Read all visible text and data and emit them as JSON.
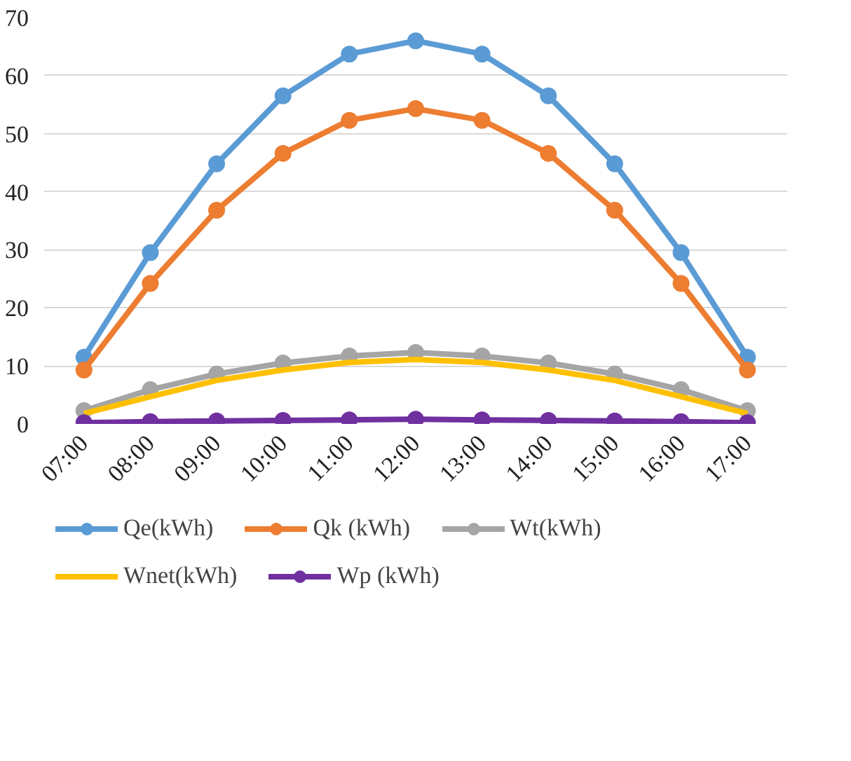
{
  "chart_data": {
    "type": "line",
    "categories": [
      "07:00",
      "08:00",
      "09:00",
      "10:00",
      "11:00",
      "12:00",
      "13:00",
      "14:00",
      "15:00",
      "16:00",
      "17:00"
    ],
    "series": [
      {
        "name": "Qe(kWh)",
        "color": "#5b9bd5",
        "marker": "circle",
        "values": [
          11.5,
          29.5,
          44.8,
          56.5,
          63.7,
          66,
          63.7,
          56.5,
          44.8,
          29.5,
          11.5
        ]
      },
      {
        "name": "Qk (kWh)",
        "color": "#ed7d31",
        "marker": "circle",
        "values": [
          9.3,
          24.2,
          36.8,
          46.6,
          52.3,
          54.3,
          52.3,
          46.6,
          36.8,
          24.2,
          9.3
        ]
      },
      {
        "name": "Wt(kWh)",
        "color": "#a5a5a5",
        "marker": "circle",
        "values": [
          2.3,
          5.9,
          8.6,
          10.5,
          11.7,
          12.3,
          11.7,
          10.5,
          8.6,
          5.9,
          2.3
        ]
      },
      {
        "name": "Wnet(kWh)",
        "color": "#ffc000",
        "marker": "none",
        "values": [
          1.8,
          4.7,
          7.5,
          9.3,
          10.6,
          11.1,
          10.6,
          9.3,
          7.5,
          4.7,
          1.8
        ]
      },
      {
        "name": "Wp (kWh)",
        "color": "#7030a0",
        "marker": "circle",
        "values": [
          0.2,
          0.4,
          0.5,
          0.6,
          0.7,
          0.8,
          0.7,
          0.6,
          0.5,
          0.4,
          0.2
        ]
      }
    ],
    "ylim": [
      0,
      70
    ],
    "yticks": [
      0,
      10,
      20,
      30,
      40,
      50,
      60,
      70
    ],
    "grid": "y",
    "legend": "bottom",
    "line_style": "solid"
  }
}
